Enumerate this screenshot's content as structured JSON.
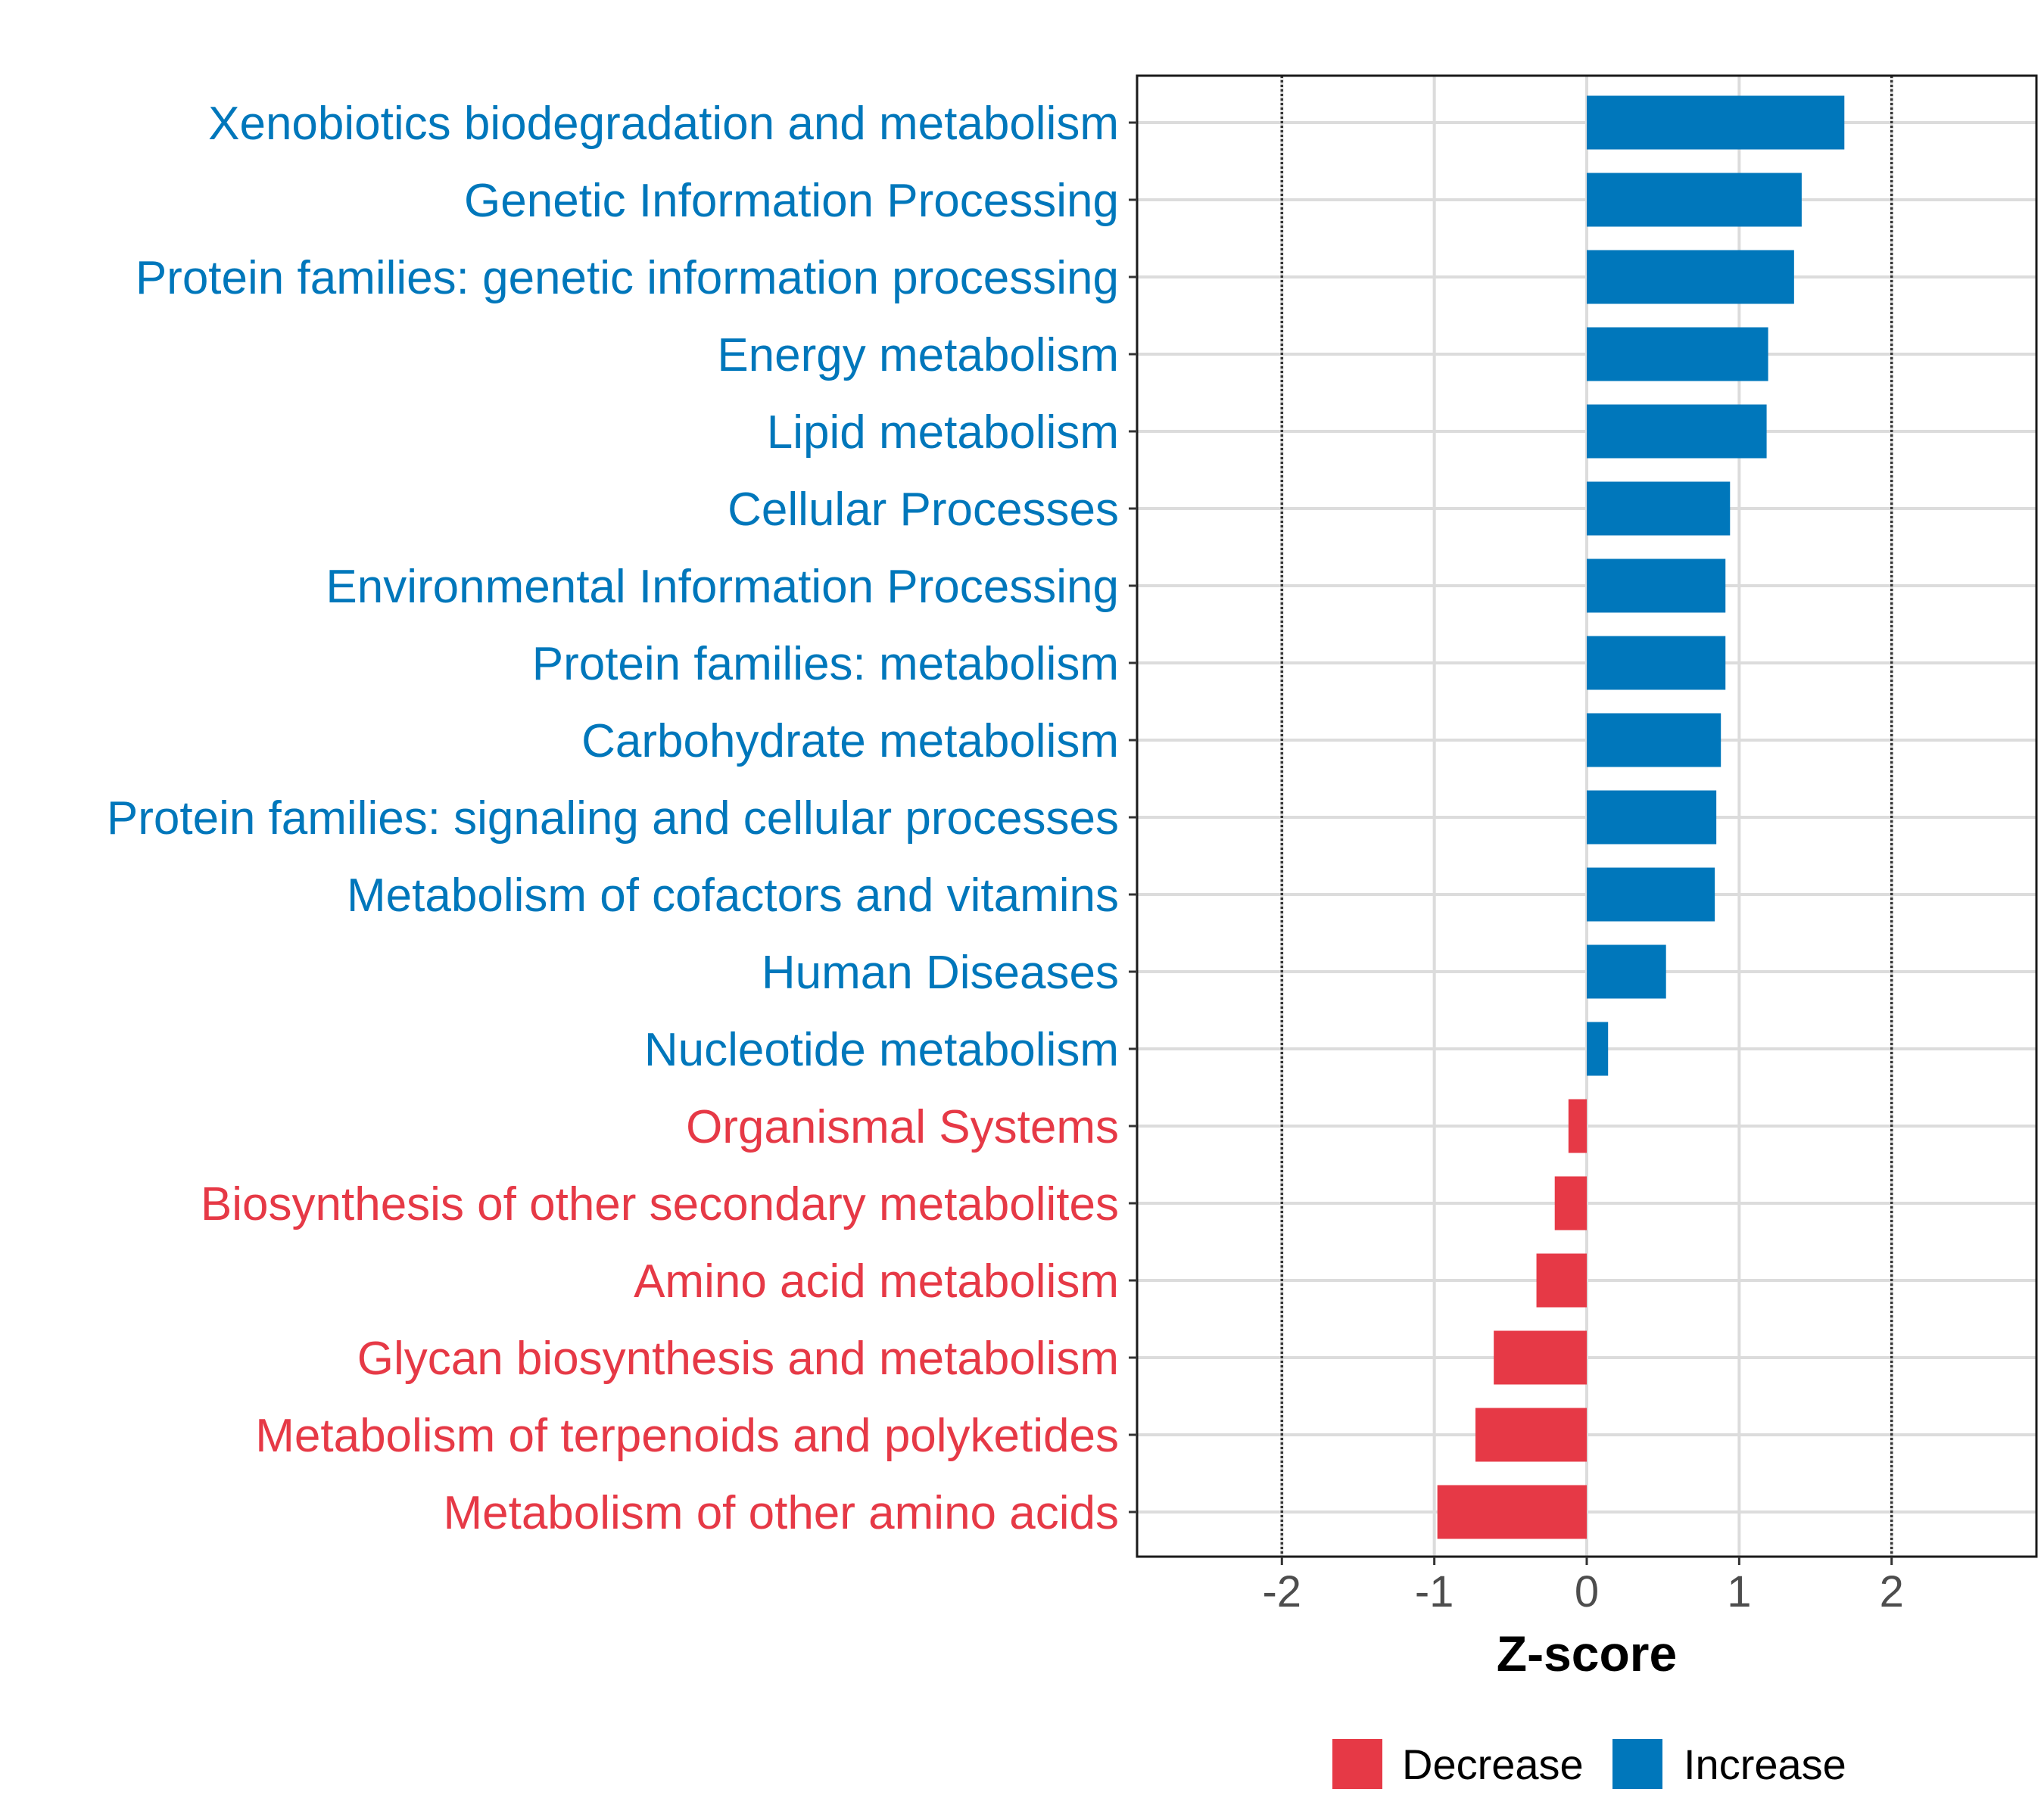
{
  "colors": {
    "increase": "#0077BB",
    "decrease": "#E63946",
    "axis_text": "#4D4D4D",
    "grid": "#DCDCDC",
    "panel_border": "#1A1A1A",
    "reference_line": "#333333"
  },
  "chart_data": {
    "type": "bar",
    "orientation": "horizontal",
    "xlabel": "Z-score",
    "ylabel": "",
    "xlim": [
      -2.95,
      2.95
    ],
    "x_ticks": [
      -2,
      -1,
      0,
      1,
      2
    ],
    "x_tick_labels": [
      "-2",
      "-1",
      "0",
      "1",
      "2"
    ],
    "reference_lines": [
      -2,
      2
    ],
    "grid": true,
    "legend_position": "bottom",
    "categories": [
      "Xenobiotics biodegradation and metabolism",
      "Genetic Information Processing",
      "Protein families: genetic information processing",
      "Energy metabolism",
      "Lipid metabolism",
      "Cellular Processes",
      "Environmental Information Processing",
      "Protein families: metabolism",
      "Carbohydrate metabolism",
      "Protein families: signaling and cellular processes",
      "Metabolism of cofactors and vitamins",
      "Human Diseases",
      "Nucleotide metabolism",
      "Organismal Systems",
      "Biosynthesis of other secondary metabolites",
      "Amino acid metabolism",
      "Glycan biosynthesis and metabolism",
      "Metabolism of terpenoids and polyketides",
      "Metabolism of other amino acids"
    ],
    "values": [
      1.69,
      1.41,
      1.36,
      1.19,
      1.18,
      0.94,
      0.91,
      0.91,
      0.88,
      0.85,
      0.84,
      0.52,
      0.14,
      -0.12,
      -0.21,
      -0.33,
      -0.61,
      -0.73,
      -0.98
    ],
    "groups": [
      "Increase",
      "Increase",
      "Increase",
      "Increase",
      "Increase",
      "Increase",
      "Increase",
      "Increase",
      "Increase",
      "Increase",
      "Increase",
      "Increase",
      "Increase",
      "Decrease",
      "Decrease",
      "Decrease",
      "Decrease",
      "Decrease",
      "Decrease"
    ],
    "legend": [
      {
        "label": "Decrease",
        "color": "#E63946"
      },
      {
        "label": "Increase",
        "color": "#0077BB"
      }
    ]
  }
}
